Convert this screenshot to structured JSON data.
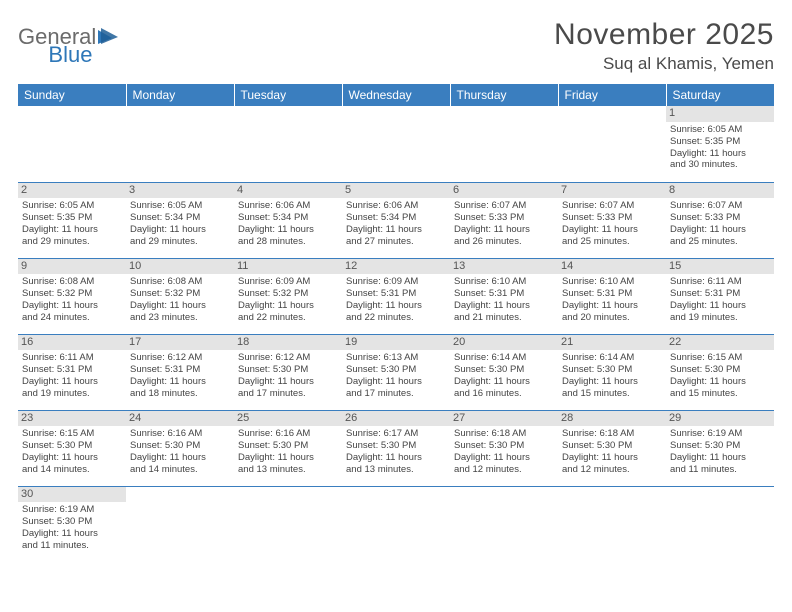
{
  "logo": {
    "text1": "General",
    "text2": "Blue"
  },
  "title": "November 2025",
  "location": "Suq al Khamis, Yemen",
  "header_bg": "#3a7ebf",
  "header_text_color": "#ffffff",
  "daynum_bg": "#e4e4e4",
  "border_color": "#3a7ebf",
  "days": [
    "Sunday",
    "Monday",
    "Tuesday",
    "Wednesday",
    "Thursday",
    "Friday",
    "Saturday"
  ],
  "weeks": [
    [
      null,
      null,
      null,
      null,
      null,
      null,
      {
        "n": "1",
        "sr": "Sunrise: 6:05 AM",
        "ss": "Sunset: 5:35 PM",
        "d1": "Daylight: 11 hours",
        "d2": "and 30 minutes."
      }
    ],
    [
      {
        "n": "2",
        "sr": "Sunrise: 6:05 AM",
        "ss": "Sunset: 5:35 PM",
        "d1": "Daylight: 11 hours",
        "d2": "and 29 minutes."
      },
      {
        "n": "3",
        "sr": "Sunrise: 6:05 AM",
        "ss": "Sunset: 5:34 PM",
        "d1": "Daylight: 11 hours",
        "d2": "and 29 minutes."
      },
      {
        "n": "4",
        "sr": "Sunrise: 6:06 AM",
        "ss": "Sunset: 5:34 PM",
        "d1": "Daylight: 11 hours",
        "d2": "and 28 minutes."
      },
      {
        "n": "5",
        "sr": "Sunrise: 6:06 AM",
        "ss": "Sunset: 5:34 PM",
        "d1": "Daylight: 11 hours",
        "d2": "and 27 minutes."
      },
      {
        "n": "6",
        "sr": "Sunrise: 6:07 AM",
        "ss": "Sunset: 5:33 PM",
        "d1": "Daylight: 11 hours",
        "d2": "and 26 minutes."
      },
      {
        "n": "7",
        "sr": "Sunrise: 6:07 AM",
        "ss": "Sunset: 5:33 PM",
        "d1": "Daylight: 11 hours",
        "d2": "and 25 minutes."
      },
      {
        "n": "8",
        "sr": "Sunrise: 6:07 AM",
        "ss": "Sunset: 5:33 PM",
        "d1": "Daylight: 11 hours",
        "d2": "and 25 minutes."
      }
    ],
    [
      {
        "n": "9",
        "sr": "Sunrise: 6:08 AM",
        "ss": "Sunset: 5:32 PM",
        "d1": "Daylight: 11 hours",
        "d2": "and 24 minutes."
      },
      {
        "n": "10",
        "sr": "Sunrise: 6:08 AM",
        "ss": "Sunset: 5:32 PM",
        "d1": "Daylight: 11 hours",
        "d2": "and 23 minutes."
      },
      {
        "n": "11",
        "sr": "Sunrise: 6:09 AM",
        "ss": "Sunset: 5:32 PM",
        "d1": "Daylight: 11 hours",
        "d2": "and 22 minutes."
      },
      {
        "n": "12",
        "sr": "Sunrise: 6:09 AM",
        "ss": "Sunset: 5:31 PM",
        "d1": "Daylight: 11 hours",
        "d2": "and 22 minutes."
      },
      {
        "n": "13",
        "sr": "Sunrise: 6:10 AM",
        "ss": "Sunset: 5:31 PM",
        "d1": "Daylight: 11 hours",
        "d2": "and 21 minutes."
      },
      {
        "n": "14",
        "sr": "Sunrise: 6:10 AM",
        "ss": "Sunset: 5:31 PM",
        "d1": "Daylight: 11 hours",
        "d2": "and 20 minutes."
      },
      {
        "n": "15",
        "sr": "Sunrise: 6:11 AM",
        "ss": "Sunset: 5:31 PM",
        "d1": "Daylight: 11 hours",
        "d2": "and 19 minutes."
      }
    ],
    [
      {
        "n": "16",
        "sr": "Sunrise: 6:11 AM",
        "ss": "Sunset: 5:31 PM",
        "d1": "Daylight: 11 hours",
        "d2": "and 19 minutes."
      },
      {
        "n": "17",
        "sr": "Sunrise: 6:12 AM",
        "ss": "Sunset: 5:31 PM",
        "d1": "Daylight: 11 hours",
        "d2": "and 18 minutes."
      },
      {
        "n": "18",
        "sr": "Sunrise: 6:12 AM",
        "ss": "Sunset: 5:30 PM",
        "d1": "Daylight: 11 hours",
        "d2": "and 17 minutes."
      },
      {
        "n": "19",
        "sr": "Sunrise: 6:13 AM",
        "ss": "Sunset: 5:30 PM",
        "d1": "Daylight: 11 hours",
        "d2": "and 17 minutes."
      },
      {
        "n": "20",
        "sr": "Sunrise: 6:14 AM",
        "ss": "Sunset: 5:30 PM",
        "d1": "Daylight: 11 hours",
        "d2": "and 16 minutes."
      },
      {
        "n": "21",
        "sr": "Sunrise: 6:14 AM",
        "ss": "Sunset: 5:30 PM",
        "d1": "Daylight: 11 hours",
        "d2": "and 15 minutes."
      },
      {
        "n": "22",
        "sr": "Sunrise: 6:15 AM",
        "ss": "Sunset: 5:30 PM",
        "d1": "Daylight: 11 hours",
        "d2": "and 15 minutes."
      }
    ],
    [
      {
        "n": "23",
        "sr": "Sunrise: 6:15 AM",
        "ss": "Sunset: 5:30 PM",
        "d1": "Daylight: 11 hours",
        "d2": "and 14 minutes."
      },
      {
        "n": "24",
        "sr": "Sunrise: 6:16 AM",
        "ss": "Sunset: 5:30 PM",
        "d1": "Daylight: 11 hours",
        "d2": "and 14 minutes."
      },
      {
        "n": "25",
        "sr": "Sunrise: 6:16 AM",
        "ss": "Sunset: 5:30 PM",
        "d1": "Daylight: 11 hours",
        "d2": "and 13 minutes."
      },
      {
        "n": "26",
        "sr": "Sunrise: 6:17 AM",
        "ss": "Sunset: 5:30 PM",
        "d1": "Daylight: 11 hours",
        "d2": "and 13 minutes."
      },
      {
        "n": "27",
        "sr": "Sunrise: 6:18 AM",
        "ss": "Sunset: 5:30 PM",
        "d1": "Daylight: 11 hours",
        "d2": "and 12 minutes."
      },
      {
        "n": "28",
        "sr": "Sunrise: 6:18 AM",
        "ss": "Sunset: 5:30 PM",
        "d1": "Daylight: 11 hours",
        "d2": "and 12 minutes."
      },
      {
        "n": "29",
        "sr": "Sunrise: 6:19 AM",
        "ss": "Sunset: 5:30 PM",
        "d1": "Daylight: 11 hours",
        "d2": "and 11 minutes."
      }
    ],
    [
      {
        "n": "30",
        "sr": "Sunrise: 6:19 AM",
        "ss": "Sunset: 5:30 PM",
        "d1": "Daylight: 11 hours",
        "d2": "and 11 minutes."
      },
      null,
      null,
      null,
      null,
      null,
      null
    ]
  ]
}
